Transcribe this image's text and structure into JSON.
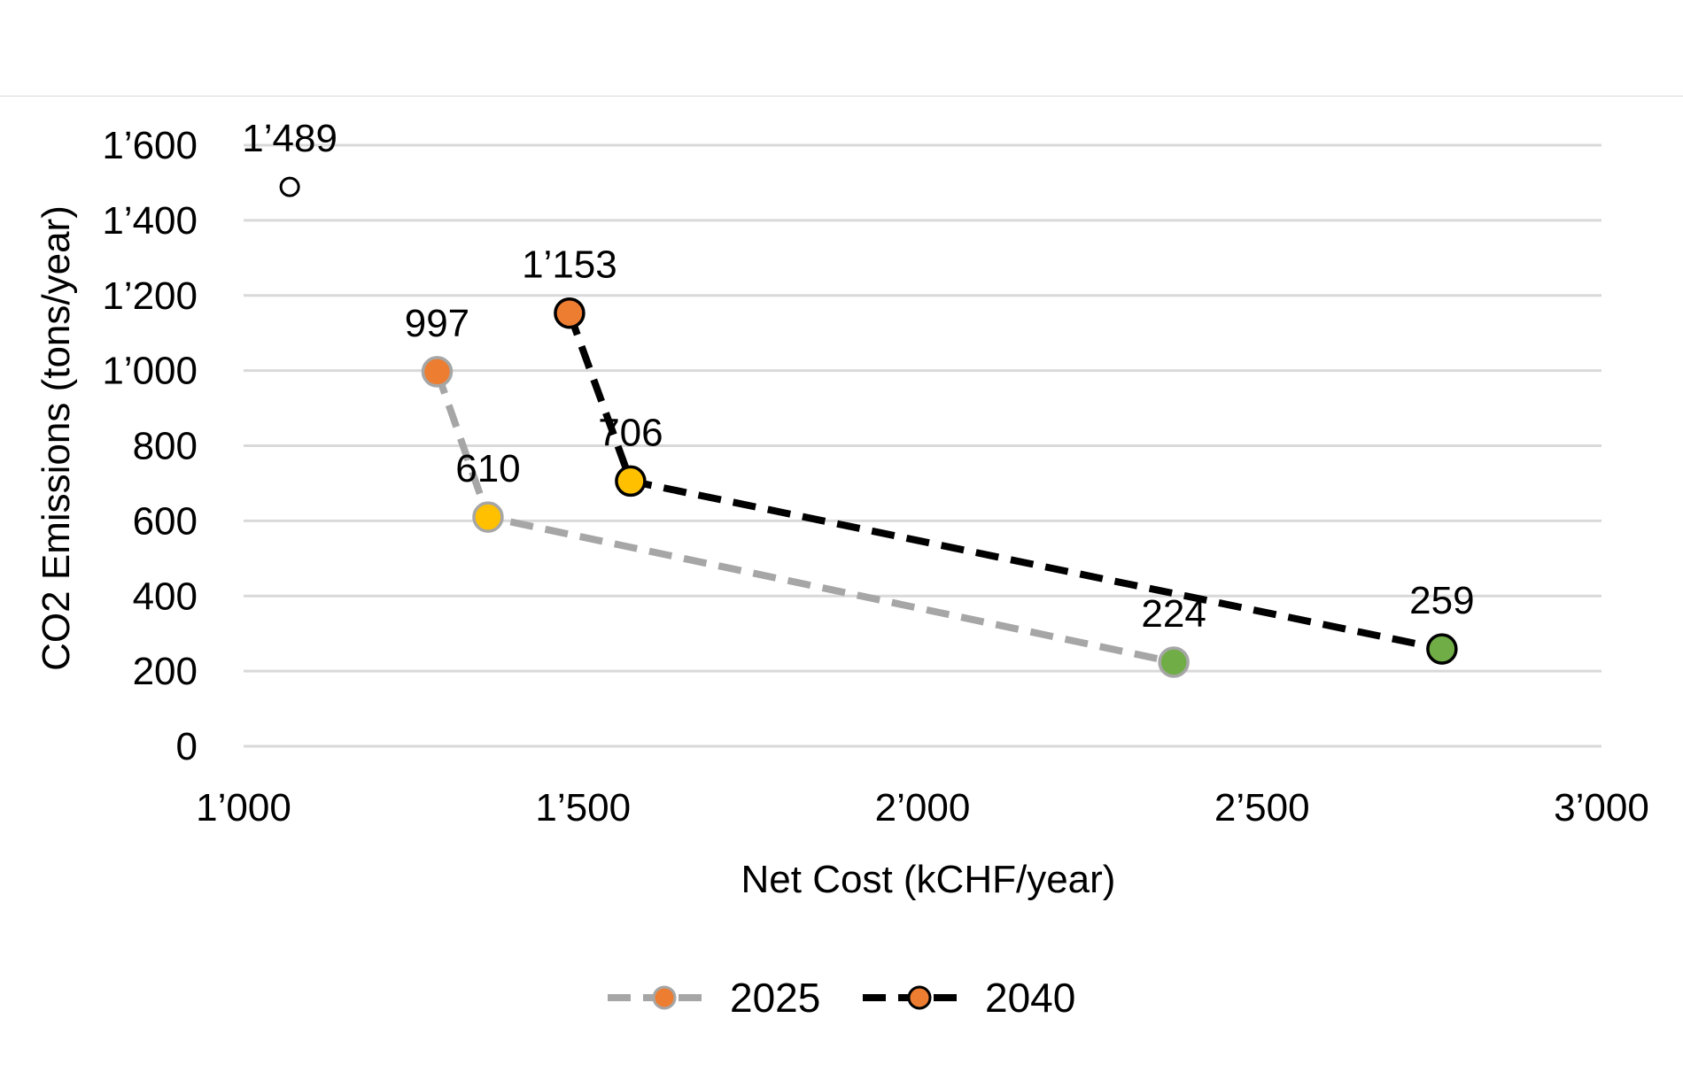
{
  "chart_data": {
    "type": "scatter",
    "xlabel": "Net Cost (kCHF/year)",
    "ylabel": "CO2 Emissions (tons/year)",
    "xlim": [
      1000,
      3000
    ],
    "ylim": [
      0,
      1600
    ],
    "x_ticks": [
      1000,
      1500,
      2000,
      2500,
      3000
    ],
    "x_tick_labels": [
      "1’000",
      "1’500",
      "2’000",
      "2’500",
      "3’000"
    ],
    "y_ticks": [
      0,
      200,
      400,
      600,
      800,
      1000,
      1200,
      1400,
      1600
    ],
    "y_tick_labels": [
      "0",
      "200",
      "400",
      "600",
      "800",
      "1’000",
      "1’200",
      "1’400",
      "1’600"
    ],
    "grid": "horizontal",
    "legend_position": "bottom",
    "series": [
      {
        "name": "2025",
        "line_color": "#a6a6a6",
        "line_style": "dashed",
        "marker_edge": "#a6a6a6",
        "points": [
          {
            "x": 1285,
            "y": 997,
            "label": "997",
            "color": "#ed7d31"
          },
          {
            "x": 1360,
            "y": 610,
            "label": "610",
            "color": "#ffc000"
          },
          {
            "x": 2370,
            "y": 224,
            "label": "224",
            "color": "#70ad47"
          }
        ]
      },
      {
        "name": "2040",
        "line_color": "#000000",
        "line_style": "dashed",
        "marker_edge": "#000000",
        "points": [
          {
            "x": 1480,
            "y": 1153,
            "label": "1’153",
            "color": "#ed7d31"
          },
          {
            "x": 1570,
            "y": 706,
            "label": "706",
            "color": "#ffc000"
          },
          {
            "x": 2765,
            "y": 259,
            "label": "259",
            "color": "#70ad47"
          }
        ]
      }
    ],
    "extra_points": [
      {
        "x": 1068,
        "y": 1489,
        "label": "1’489",
        "color": "#ffffff",
        "edge": "#000000",
        "open": true
      }
    ],
    "legend": [
      {
        "name": "2025",
        "line_color": "#a6a6a6",
        "marker_color": "#ed7d31",
        "marker_edge": "#a6a6a6"
      },
      {
        "name": "2040",
        "line_color": "#000000",
        "marker_color": "#ed7d31",
        "marker_edge": "#000000"
      }
    ]
  }
}
